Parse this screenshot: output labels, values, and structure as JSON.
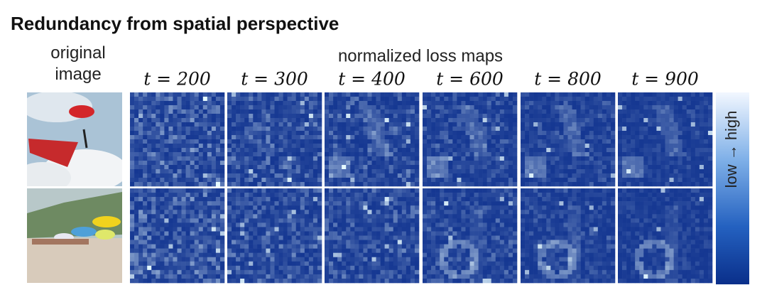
{
  "title": "Redundancy from spatial perspective",
  "original_header": "original image",
  "loss_maps_header": "normalized loss maps",
  "timesteps": [
    "t = 200",
    "t = 300",
    "t = 400",
    "t = 600",
    "t = 800",
    "t = 900"
  ],
  "colorbar_label": "low → high"
}
